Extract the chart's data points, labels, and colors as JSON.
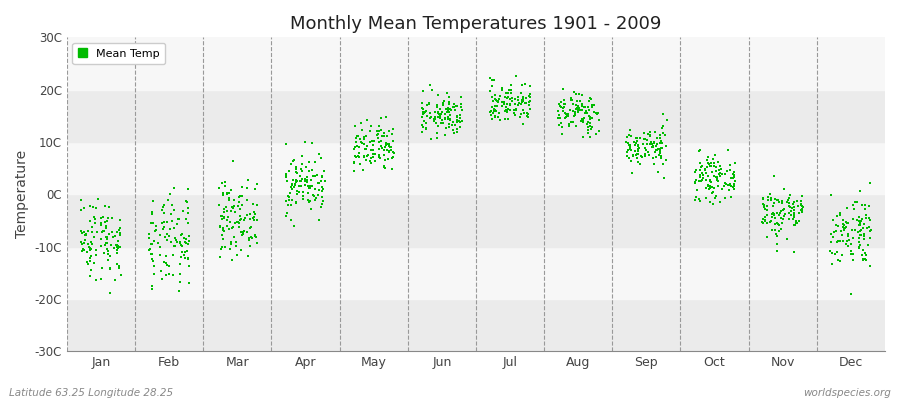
{
  "title": "Monthly Mean Temperatures 1901 - 2009",
  "ylabel": "Temperature",
  "ylim": [
    -30,
    30
  ],
  "yticks": [
    -30,
    -20,
    -10,
    0,
    10,
    20,
    30
  ],
  "ytick_labels": [
    "-30C",
    "-20C",
    "-10C",
    "0C",
    "10C",
    "20C",
    "30C"
  ],
  "months": [
    "Jan",
    "Feb",
    "Mar",
    "Apr",
    "May",
    "Jun",
    "Jul",
    "Aug",
    "Sep",
    "Oct",
    "Nov",
    "Dec"
  ],
  "dot_color": "#00BB00",
  "bg_color": "#ffffff",
  "band_colors": [
    "#ebebeb",
    "#f7f7f7"
  ],
  "legend_label": "Mean Temp",
  "subtitle_left": "Latitude 63.25 Longitude 28.25",
  "subtitle_right": "worldspecies.org",
  "monthly_means": [
    -8.5,
    -9.5,
    -4.5,
    2.0,
    8.5,
    15.0,
    17.5,
    15.5,
    9.0,
    3.0,
    -3.5,
    -7.0
  ],
  "monthly_stds": [
    4.0,
    4.5,
    3.5,
    3.0,
    2.5,
    2.0,
    2.0,
    2.0,
    2.0,
    2.0,
    2.5,
    3.5
  ],
  "n_years": 109,
  "seed": 42,
  "dot_size": 4,
  "jitter": 0.3
}
